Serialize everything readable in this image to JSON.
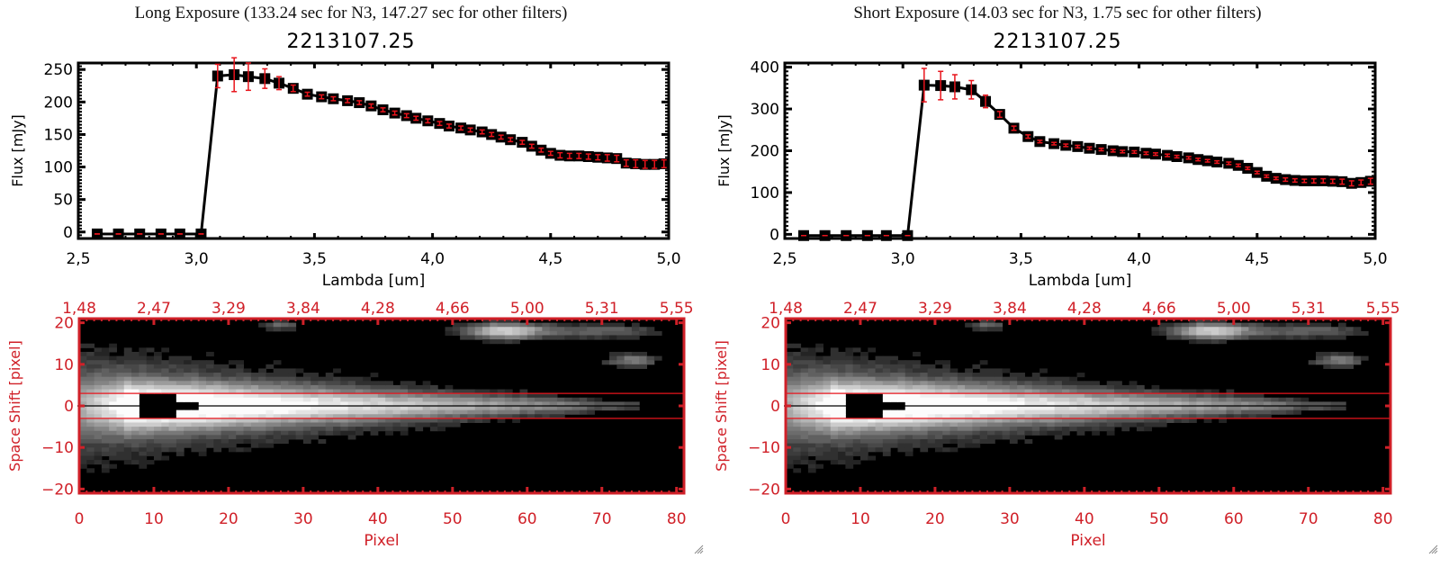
{
  "panels": [
    {
      "title": "Long Exposure (133.24 sec for N3, 147.27 sec for other filters)",
      "object_id": "2213107.25"
    },
    {
      "title": "Short Exposure (14.03 sec for N3, 1.75 sec for other filters)",
      "object_id": "2213107.25"
    }
  ],
  "colors": {
    "spectrum_line": "#000000",
    "error_bar": "#e8141c",
    "image_axis": "#d02028",
    "extraction_lines": "#e8141c"
  },
  "chart_data": [
    {
      "type": "line",
      "title": "2213107.25",
      "xlabel": "Lambda [um]",
      "ylabel": "Flux [mJy]",
      "xlim": [
        2.5,
        5.0
      ],
      "ylim": [
        -10,
        260
      ],
      "xticks": [
        "2.5",
        "3.0",
        "3.5",
        "4.0",
        "4.5",
        "5.0"
      ],
      "yticks": [
        "0",
        "50",
        "100",
        "150",
        "200",
        "250"
      ],
      "ytick_values": [
        0,
        50,
        100,
        150,
        200,
        250
      ],
      "x": [
        2.58,
        2.67,
        2.76,
        2.85,
        2.93,
        3.02,
        3.09,
        3.16,
        3.22,
        3.29,
        3.35,
        3.41,
        3.47,
        3.53,
        3.58,
        3.64,
        3.69,
        3.74,
        3.79,
        3.84,
        3.89,
        3.93,
        3.98,
        4.03,
        4.07,
        4.12,
        4.16,
        4.21,
        4.25,
        4.29,
        4.33,
        4.38,
        4.42,
        4.46,
        4.5,
        4.54,
        4.58,
        4.62,
        4.66,
        4.7,
        4.74,
        4.78,
        4.82,
        4.86,
        4.9,
        4.94,
        4.98
      ],
      "y": [
        -3,
        -3,
        -3,
        -3,
        -3,
        -3,
        240,
        242,
        239,
        236,
        229,
        221,
        212,
        208,
        205,
        202,
        199,
        194,
        188,
        183,
        179,
        175,
        171,
        167,
        163,
        160,
        157,
        154,
        150,
        146,
        142,
        138,
        132,
        126,
        121,
        118,
        117,
        117,
        116,
        115,
        114,
        113,
        106,
        105,
        104,
        104,
        105
      ],
      "yerr": [
        0,
        0,
        0,
        0,
        0,
        0,
        18,
        26,
        21,
        15,
        10,
        5,
        3,
        3,
        3,
        3,
        3,
        3,
        3,
        3,
        3,
        3,
        3,
        3,
        3,
        3,
        3,
        3,
        3,
        3,
        3,
        3,
        3,
        3,
        3,
        4,
        4,
        4,
        4,
        4,
        5,
        5,
        5,
        6,
        6,
        6,
        6
      ]
    },
    {
      "type": "image",
      "xlabel": "Pixel",
      "ylabel": "Space Shift [pixel]",
      "xlim": [
        0,
        81
      ],
      "ylim": [
        -21,
        21
      ],
      "xticks": [
        "0",
        "10",
        "20",
        "30",
        "40",
        "50",
        "60",
        "70",
        "80"
      ],
      "xtick_values": [
        0,
        10,
        20,
        30,
        40,
        50,
        60,
        70,
        80
      ],
      "yticks": [
        "-20",
        "-10",
        "0",
        "10",
        "20"
      ],
      "ytick_values": [
        -20,
        -10,
        0,
        10,
        20
      ],
      "top_axis_ticks": [
        "1.48",
        "2.47",
        "3.29",
        "3.84",
        "4.28",
        "4.66",
        "5.00",
        "5.31",
        "5.55"
      ],
      "extraction_aperture": [
        -3,
        3
      ]
    },
    {
      "type": "line",
      "title": "2213107.25",
      "xlabel": "Lambda [um]",
      "ylabel": "Flux [mJy]",
      "xlim": [
        2.5,
        5.0
      ],
      "ylim": [
        -10,
        410
      ],
      "xticks": [
        "2.5",
        "3.0",
        "3.5",
        "4.0",
        "4.5",
        "5.0"
      ],
      "yticks": [
        "0",
        "100",
        "200",
        "300",
        "400"
      ],
      "ytick_values": [
        0,
        100,
        200,
        300,
        400
      ],
      "x": [
        2.58,
        2.67,
        2.76,
        2.85,
        2.93,
        3.02,
        3.09,
        3.16,
        3.22,
        3.29,
        3.35,
        3.41,
        3.47,
        3.53,
        3.58,
        3.64,
        3.69,
        3.74,
        3.79,
        3.84,
        3.89,
        3.93,
        3.98,
        4.03,
        4.07,
        4.12,
        4.16,
        4.21,
        4.25,
        4.29,
        4.33,
        4.38,
        4.42,
        4.46,
        4.5,
        4.54,
        4.58,
        4.62,
        4.66,
        4.7,
        4.74,
        4.78,
        4.82,
        4.86,
        4.9,
        4.94,
        4.98
      ],
      "y": [
        -3,
        -3,
        -3,
        -3,
        -3,
        -3,
        357,
        356,
        353,
        346,
        318,
        287,
        254,
        234,
        222,
        217,
        213,
        210,
        206,
        203,
        200,
        198,
        197,
        194,
        192,
        189,
        186,
        183,
        179,
        176,
        173,
        170,
        165,
        158,
        148,
        139,
        134,
        131,
        129,
        128,
        128,
        128,
        127,
        126,
        122,
        124,
        127
      ],
      "yerr": [
        0,
        0,
        0,
        0,
        0,
        0,
        40,
        34,
        29,
        22,
        15,
        7,
        5,
        4,
        3,
        3,
        3,
        3,
        3,
        3,
        3,
        3,
        3,
        3,
        3,
        3,
        3,
        3,
        3,
        3,
        3,
        3,
        3,
        3,
        3,
        3,
        3,
        4,
        4,
        4,
        5,
        5,
        5,
        6,
        6,
        6,
        7
      ]
    },
    {
      "type": "image",
      "xlabel": "Pixel",
      "ylabel": "Space Shift [pixel]",
      "xlim": [
        0,
        81
      ],
      "ylim": [
        -21,
        21
      ],
      "xticks": [
        "0",
        "10",
        "20",
        "30",
        "40",
        "50",
        "60",
        "70",
        "80"
      ],
      "xtick_values": [
        0,
        10,
        20,
        30,
        40,
        50,
        60,
        70,
        80
      ],
      "yticks": [
        "-20",
        "-10",
        "0",
        "10",
        "20"
      ],
      "ytick_values": [
        -20,
        -10,
        0,
        10,
        20
      ],
      "top_axis_ticks": [
        "1.48",
        "2.47",
        "3.29",
        "3.84",
        "4.28",
        "4.66",
        "5.00",
        "5.31",
        "5.55"
      ],
      "extraction_aperture": [
        -3,
        3
      ]
    }
  ]
}
